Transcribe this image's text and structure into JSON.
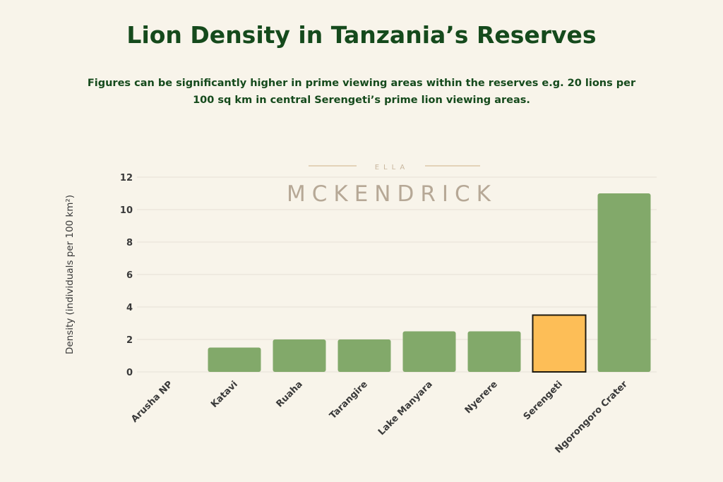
{
  "chart_data": {
    "type": "bar",
    "title": "Lion Density in Tanzania’s Reserves",
    "subtitle": "Figures can be significantly higher in prime viewing areas within the reserves e.g. 20 lions per 100 sq km in central Serengeti’s prime lion viewing areas.",
    "xlabel": "",
    "ylabel": "Density (individuals per 100 km²)",
    "ylim": [
      0,
      12
    ],
    "yticks": [
      0,
      2,
      4,
      6,
      8,
      10,
      12
    ],
    "grid": true,
    "categories": [
      "Arusha NP",
      "Katavi",
      "Ruaha",
      "Tarangire",
      "Lake Manyara",
      "Nyerere",
      "Serengeti",
      "Ngorongoro Crater"
    ],
    "values": [
      0,
      1.5,
      2,
      2,
      2.5,
      2.5,
      3.5,
      11
    ],
    "highlight": "Serengeti",
    "colors": {
      "bar": "#82a96a",
      "highlight": "#fdbe57",
      "highlight_border": "#1e1a10",
      "title": "#154a1c",
      "text": "#3a3a3a"
    }
  },
  "watermark": {
    "top": "ELLA",
    "main": "MCKENDRICK"
  }
}
